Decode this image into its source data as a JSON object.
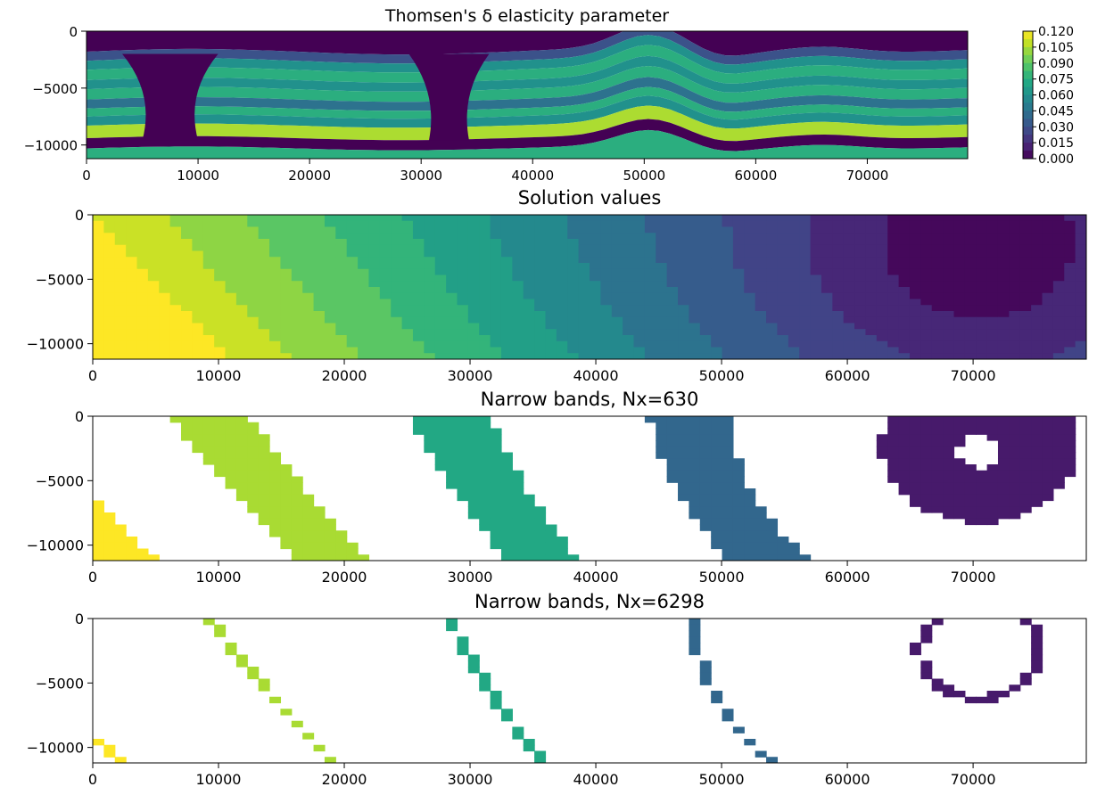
{
  "palette": [
    "#440154",
    "#482475",
    "#414487",
    "#355f8d",
    "#2a788e",
    "#21918c",
    "#22a884",
    "#44bf70",
    "#7ad151",
    "#bddf26",
    "#fde725"
  ],
  "chart_data": [
    {
      "id": "delta",
      "type": "heatmap",
      "title": "Thomsen's δ elasticity parameter",
      "xlim": [
        0,
        79000
      ],
      "ylim": [
        -11200,
        0
      ],
      "xticks": [
        0,
        10000,
        20000,
        30000,
        40000,
        50000,
        60000,
        70000
      ],
      "yticks": [
        0,
        -5000,
        -10000
      ],
      "xtick_labels": [
        "0",
        "10000",
        "20000",
        "30000",
        "40000",
        "50000",
        "60000",
        "70000"
      ],
      "ytick_labels": [
        "0",
        "−5000",
        "−10000"
      ],
      "colorbar": {
        "range": [
          0,
          0.12
        ],
        "ticks": [
          0.12,
          0.105,
          0.09,
          0.075,
          0.06,
          0.045,
          0.03,
          0.015,
          0.0
        ],
        "tick_labels": [
          "0.120",
          "0.105",
          "0.090",
          "0.075",
          "0.060",
          "0.045",
          "0.030",
          "0.015",
          "0.000"
        ]
      },
      "layers": [
        {
          "top": 0,
          "value": 0.0
        },
        {
          "top": -1800,
          "value": 0.03
        },
        {
          "top": -2600,
          "value": 0.06
        },
        {
          "top": -3400,
          "value": 0.075
        },
        {
          "top": -4300,
          "value": 0.06
        },
        {
          "top": -5100,
          "value": 0.075
        },
        {
          "top": -6000,
          "value": 0.045
        },
        {
          "top": -6800,
          "value": 0.075
        },
        {
          "top": -7500,
          "value": 0.06
        },
        {
          "top": -8300,
          "value": 0.105
        },
        {
          "top": -9400,
          "value": 0.0
        },
        {
          "top": -10300,
          "value": 0.075
        }
      ],
      "salt_bodies": [
        {
          "x_center": 7500,
          "half_width": 2500
        },
        {
          "x_center": 32500,
          "half_width": 1800
        }
      ]
    },
    {
      "id": "solution",
      "type": "heatmap",
      "title": "Solution values",
      "xlim": [
        0,
        79000
      ],
      "ylim": [
        -11200,
        0
      ],
      "xticks": [
        0,
        10000,
        20000,
        30000,
        40000,
        50000,
        60000,
        70000
      ],
      "yticks": [
        0,
        -5000,
        -10000
      ],
      "xtick_labels": [
        "0",
        "10000",
        "20000",
        "30000",
        "40000",
        "50000",
        "60000",
        "70000"
      ],
      "ytick_labels": [
        "0",
        "−5000",
        "−10000"
      ],
      "contour_levels": [
        0.02,
        0.11,
        0.2,
        0.29,
        0.38,
        0.47,
        0.56,
        0.65,
        0.74,
        0.83,
        0.92,
        1.0
      ],
      "source": {
        "x": 70500,
        "y": -2700
      }
    },
    {
      "id": "bands630",
      "type": "heatmap",
      "title": "Narrow bands, Nx=630",
      "xlim": [
        0,
        79000
      ],
      "ylim": [
        -11200,
        0
      ],
      "xticks": [
        0,
        10000,
        20000,
        30000,
        40000,
        50000,
        60000,
        70000
      ],
      "yticks": [
        0,
        -5000,
        -10000
      ],
      "xtick_labels": [
        "0",
        "10000",
        "20000",
        "30000",
        "40000",
        "50000",
        "60000",
        "70000"
      ],
      "ytick_labels": [
        "0",
        "−5000",
        "−10000"
      ],
      "bands": [
        {
          "center": 0.07,
          "half_width": 0.045
        },
        {
          "center": 0.33,
          "half_width": 0.045
        },
        {
          "center": 0.6,
          "half_width": 0.045
        },
        {
          "center": 0.87,
          "half_width": 0.045
        },
        {
          "center": 1.14,
          "half_width": 0.045
        },
        {
          "center": 1.41,
          "half_width": 0.045
        }
      ]
    },
    {
      "id": "bands6298",
      "type": "heatmap",
      "title": "Narrow bands, Nx=6298",
      "xlim": [
        0,
        79000
      ],
      "ylim": [
        -11200,
        0
      ],
      "xticks": [
        0,
        10000,
        20000,
        30000,
        40000,
        50000,
        60000,
        70000
      ],
      "yticks": [
        0,
        -5000,
        -10000
      ],
      "xtick_labels": [
        "0",
        "10000",
        "20000",
        "30000",
        "40000",
        "50000",
        "60000",
        "70000"
      ],
      "ytick_labels": [
        "0",
        "−5000",
        "−10000"
      ],
      "bands": [
        {
          "center": 0.07,
          "half_width": 0.0055
        },
        {
          "center": 0.33,
          "half_width": 0.0055
        },
        {
          "center": 0.6,
          "half_width": 0.0055
        },
        {
          "center": 0.87,
          "half_width": 0.0055
        },
        {
          "center": 1.14,
          "half_width": 0.0055
        },
        {
          "center": 1.41,
          "half_width": 0.0055
        }
      ]
    }
  ]
}
